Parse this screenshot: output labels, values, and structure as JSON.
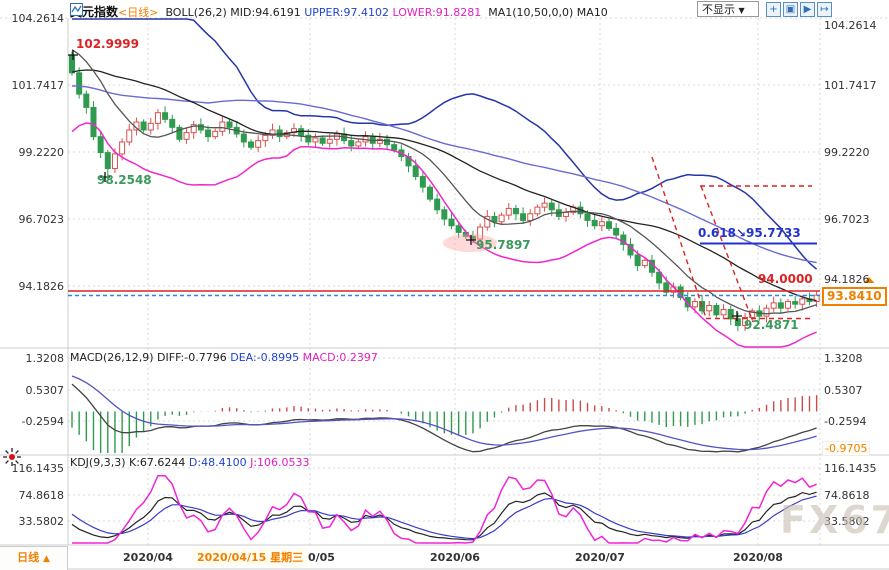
{
  "header": {
    "symbol": "美元指数",
    "period_tag": "<日线>",
    "boll_label": "BOLL(26,2)",
    "boll_mid": "MID:94.6191",
    "boll_upper": "UPPER:97.4102",
    "boll_lower": "LOWER:91.8281",
    "ma_label": "MA1(10,50,0,0)",
    "ma_name": "MA10",
    "display_dropdown": "不显示",
    "dropdown_arrow": "▼",
    "toolbar_icons": [
      "+",
      "▣",
      "▶",
      "↦"
    ]
  },
  "axes": {
    "main": [
      "104.2614",
      "101.7417",
      "99.2220",
      "96.7023",
      "94.1826"
    ],
    "macd": [
      "1.3208",
      "0.5307",
      "-0.2594"
    ],
    "macd_current": "-0.9705",
    "kdj": [
      "116.1435",
      "74.8618",
      "33.5802"
    ],
    "dates": [
      "2020/04",
      "2020/05",
      "2020/06",
      "2020/07",
      "2020/08"
    ],
    "date_highlight": "2020/04/15 星期三"
  },
  "annotations": {
    "swing_high": "102.9999",
    "swing_low_1": "98.2548",
    "swing_low_2": "95.7897",
    "fib_level": "0.618↘95.7733",
    "round_level": "94.0000",
    "swing_low_3": "92.4871",
    "current_price": "93.8410"
  },
  "macd_header": {
    "label": "MACD(26,12,9)",
    "diff": "DIFF:-0.7796",
    "dea": "DEA:-0.8995",
    "macd": "MACD:0.2397"
  },
  "kdj_header": {
    "label": "KDJ(9,3,3)",
    "k": "K:67.6244",
    "d": "D:48.4100",
    "j": "J:106.0533"
  },
  "footer": {
    "period": "日线",
    "period_arrow": "▲",
    "watermark": "FX678"
  },
  "colors": {
    "up_candle": "#d9504f",
    "down_candle": "#2e9b4e",
    "boll_upper": "#2535a8",
    "boll_mid": "#222222",
    "boll_lower": "#ee28cc",
    "ma10": "#555555",
    "ma50": "#6a6ad2",
    "diff_line": "#444444",
    "dea_line": "#5353c8",
    "hist_pos": "#cc4a4a",
    "hist_neg": "#2e9b4e",
    "kdj_k": "#222222",
    "kdj_d": "#3a3ac8",
    "kdj_j": "#f024d8",
    "accent_orange": "#f08000",
    "level_red": "#dd2222",
    "fib_blue": "#2233cc",
    "price_dash_blue": "#2288ee",
    "annot_green": "#3a9a5c"
  },
  "chart_data": {
    "type": "candlestick+indicators",
    "symbol": "美元指数 (US Dollar Index), daily",
    "x_range_dates": [
      "2020/03 (off-label)",
      "2020/08"
    ],
    "price_axis_ticks": [
      104.2614,
      101.7417,
      99.222,
      96.7023,
      94.1826
    ],
    "macd_axis_ticks": [
      1.3208,
      0.5307,
      -0.2594
    ],
    "kdj_axis_ticks": [
      116.1435,
      74.8618,
      33.5802
    ],
    "key_levels": {
      "swing_high": 102.9999,
      "swing_low_1": 98.2548,
      "swing_low_2": 95.7897,
      "fib_618": 95.7733,
      "round_level": 94.0,
      "swing_low_3": 92.4871,
      "last_price": 93.841,
      "boll_mid": 94.6191,
      "boll_upper": 97.4102,
      "boll_lower": 91.8281,
      "macd_diff": -0.7796,
      "macd_dea": -0.8995,
      "macd_hist": 0.2397,
      "kdj_k": 67.6244,
      "kdj_d": 48.41,
      "kdj_j": 106.0533
    },
    "open_first": 102.85,
    "pre": [
      98.5,
      98.8,
      99.2,
      99.0,
      99.5,
      99.9,
      100.3,
      100.0,
      100.5,
      101.0,
      101.4,
      101.1,
      101.6,
      102.0,
      102.4,
      102.1,
      102.6,
      103.0,
      103.4,
      103.1,
      102.8,
      103.2,
      103.6,
      103.3,
      103.0,
      103.4,
      103.1,
      102.8,
      103.2,
      102.9
    ],
    "closes": [
      102.2,
      101.4,
      100.9,
      99.8,
      99.2,
      98.6,
      99.15,
      99.6,
      100.05,
      100.35,
      100.05,
      100.3,
      100.7,
      100.45,
      100.15,
      99.7,
      99.95,
      100.25,
      100.05,
      99.8,
      100.0,
      100.35,
      100.15,
      99.9,
      99.6,
      99.4,
      99.65,
      99.85,
      100.05,
      99.8,
      99.95,
      100.1,
      99.85,
      99.6,
      99.75,
      99.55,
      99.7,
      99.9,
      99.65,
      99.45,
      99.6,
      99.8,
      99.55,
      99.7,
      99.5,
      99.3,
      99.05,
      98.7,
      98.3,
      97.9,
      97.45,
      97.05,
      96.7,
      96.45,
      96.2,
      96.05,
      95.95,
      96.4,
      96.8,
      96.6,
      96.85,
      97.1,
      96.9,
      96.65,
      96.9,
      97.15,
      97.3,
      97.05,
      96.8,
      96.95,
      97.15,
      96.9,
      96.65,
      96.45,
      96.6,
      96.35,
      96.1,
      95.75,
      95.35,
      94.95,
      95.15,
      94.7,
      94.3,
      93.95,
      94.15,
      93.75,
      93.4,
      93.6,
      93.25,
      93.45,
      93.1,
      93.3,
      92.95,
      92.7,
      93.0,
      93.25,
      93.05,
      93.35,
      93.55,
      93.35,
      93.6,
      93.5,
      93.7,
      93.6,
      93.84
    ],
    "special_high": {
      "0": 102.9999
    },
    "special_low": {
      "5": 98.2548,
      "56": 95.7897,
      "93": 92.4871
    }
  }
}
